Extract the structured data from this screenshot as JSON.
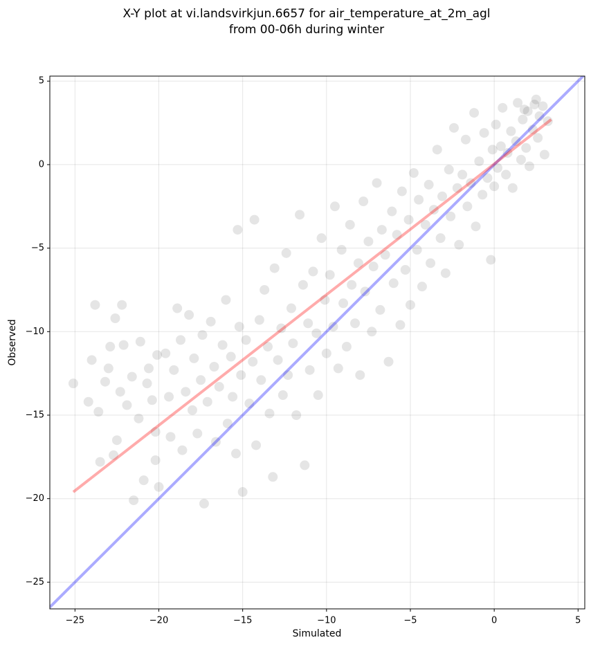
{
  "chart_data": {
    "type": "scatter",
    "title": "X-Y plot at vi.landsvirkjun.6657 for air_temperature_at_2m_agl",
    "subtitle": "from 00-06h during winter",
    "x_label": "Simulated",
    "y_label": "Observed",
    "color": "#000000",
    "grid": true,
    "xlim": [
      -26.5,
      5.4
    ],
    "ylim": [
      -26.6,
      5.3
    ],
    "xticks": [
      {
        "value": -25,
        "label": "−25"
      },
      {
        "value": -20,
        "label": "−20"
      },
      {
        "value": -15,
        "label": "−15"
      },
      {
        "value": -10,
        "label": "−10"
      },
      {
        "value": -5,
        "label": "−5"
      },
      0,
      5
    ],
    "yticks": [
      {
        "value": -25,
        "label": "−25"
      },
      {
        "value": -20,
        "label": "−20"
      },
      {
        "value": -15,
        "label": "−15"
      },
      {
        "value": -10,
        "label": "−10"
      },
      {
        "value": -5,
        "label": "−5"
      },
      0,
      5
    ],
    "x": [
      -25.1,
      -24.2,
      -24,
      -23.8,
      -23.6,
      -23.5,
      -23.2,
      -23,
      -22.9,
      -22.7,
      -22.5,
      -22.6,
      -22.3,
      -22.1,
      -22.2,
      -21.9,
      -21.6,
      -21.5,
      -21.2,
      -21.1,
      -20.9,
      -20.7,
      -20.6,
      -20.2,
      -20.1,
      -20.2,
      -20,
      -20.4,
      -19.6,
      -19.4,
      -19.3,
      -19.1,
      -18.9,
      -18.7,
      -18.6,
      -18.4,
      -18.2,
      -18,
      -17.9,
      -17.7,
      -17.5,
      -17.4,
      -17.3,
      -17.1,
      -16.9,
      -16.7,
      -16.6,
      -16.4,
      -16.2,
      -16,
      -15.9,
      -15.7,
      -15.6,
      -15.4,
      -15.2,
      -15.1,
      -15,
      -15.3,
      -14.8,
      -14.6,
      -14.4,
      -14.3,
      -14.2,
      -14,
      -13.9,
      -13.7,
      -13.5,
      -13.4,
      -13.2,
      -13.1,
      -12.9,
      -12.7,
      -12.6,
      -12.4,
      -12.3,
      -12.1,
      -12,
      -11.8,
      -11.6,
      -11.4,
      -11.3,
      -11.1,
      -11,
      -10.8,
      -10.6,
      -10.5,
      -10.3,
      -10.1,
      -10,
      -9.8,
      -9.6,
      -9.5,
      -9.3,
      -9.1,
      -9,
      -8.8,
      -8.6,
      -8.5,
      -8.3,
      -8.1,
      -8,
      -7.8,
      -7.7,
      -7.5,
      -7.3,
      -7.2,
      -7,
      -6.8,
      -6.7,
      -6.5,
      -6.3,
      -6.1,
      -6,
      -5.8,
      -5.6,
      -5.5,
      -5.3,
      -5.1,
      -5,
      -4.8,
      -4.6,
      -4.5,
      -4.3,
      -4.1,
      -3.9,
      -3.8,
      -3.6,
      -3.4,
      -3.2,
      -3.1,
      -2.9,
      -2.7,
      -2.6,
      -2.4,
      -2.2,
      -2.1,
      -1.9,
      -1.7,
      -1.6,
      -1.4,
      -1.2,
      -1.1,
      -0.9,
      -0.7,
      -0.6,
      -0.4,
      -0.2,
      -0.1,
      0,
      0.1,
      0.2,
      0.4,
      0.5,
      0.7,
      0.8,
      1,
      1.1,
      1.3,
      1.4,
      1.6,
      1.7,
      1.9,
      2,
      2.1,
      2.3,
      2.4,
      2.6,
      2.7,
      2.9,
      3,
      3.2,
      2.5,
      1.8
    ],
    "values": [
      -13.1,
      -14.2,
      -11.7,
      -8.4,
      -14.8,
      -17.8,
      -13,
      -12.2,
      -10.9,
      -17.4,
      -16.5,
      -9.2,
      -13.6,
      -10.8,
      -8.4,
      -14.4,
      -12.7,
      -20.1,
      -15.2,
      -10.6,
      -18.9,
      -13.1,
      -12.2,
      -16,
      -11.4,
      -17.7,
      -19.3,
      -14.1,
      -11.3,
      -13.9,
      -16.3,
      -12.3,
      -8.6,
      -10.5,
      -17.1,
      -13.6,
      -9,
      -14.7,
      -11.6,
      -16.1,
      -12.9,
      -10.2,
      -20.3,
      -14.2,
      -9.4,
      -12.1,
      -16.6,
      -13.3,
      -10.8,
      -8.1,
      -15.5,
      -11.5,
      -13.9,
      -17.3,
      -9.7,
      -12.6,
      -19.6,
      -3.9,
      -10.5,
      -14.3,
      -11.8,
      -3.3,
      -16.8,
      -9.3,
      -12.9,
      -7.5,
      -10.9,
      -14.9,
      -18.7,
      -6.2,
      -11.7,
      -9.8,
      -13.8,
      -5.3,
      -12.6,
      -8.6,
      -10.7,
      -15,
      -3,
      -7.2,
      -18,
      -9.5,
      -12.3,
      -6.4,
      -10.1,
      -13.8,
      -4.4,
      -8.1,
      -11.3,
      -6.6,
      -9.7,
      -2.5,
      -12.2,
      -5.1,
      -8.3,
      -10.9,
      -3.6,
      -7.2,
      -9.5,
      -5.9,
      -12.6,
      -2.2,
      -7.6,
      -4.6,
      -10,
      -6.1,
      -1.1,
      -8.7,
      -3.9,
      -5.4,
      -11.8,
      -2.8,
      -7.1,
      -4.2,
      -9.6,
      -1.6,
      -6.3,
      -3.3,
      -8.4,
      -0.5,
      -5.1,
      -2.1,
      -7.3,
      -3.6,
      -1.2,
      -5.9,
      -2.7,
      0.9,
      -4.4,
      -1.9,
      -6.5,
      -0.3,
      -3.1,
      2.2,
      -1.4,
      -4.8,
      -0.6,
      1.5,
      -2.5,
      -1.1,
      3.1,
      -3.7,
      0.2,
      -1.8,
      1.9,
      -0.8,
      -5.7,
      0.9,
      -1.3,
      2.4,
      -0.2,
      1.1,
      3.4,
      -0.6,
      0.7,
      2,
      -1.4,
      1.4,
      3.7,
      0.3,
      2.7,
      1,
      3.2,
      -0.1,
      2.1,
      3.6,
      1.6,
      2.9,
      3.5,
      0.6,
      2.6,
      3.9,
      3.3
    ],
    "lines": [
      {
        "color": "#0000ff",
        "x": [
          -26.5,
          5.4
        ],
        "values": [
          -26.5,
          5.4
        ]
      },
      {
        "color": "#ff0000",
        "x": [
          -25.1,
          3.4
        ],
        "values": [
          -19.6,
          2.7
        ]
      }
    ]
  }
}
